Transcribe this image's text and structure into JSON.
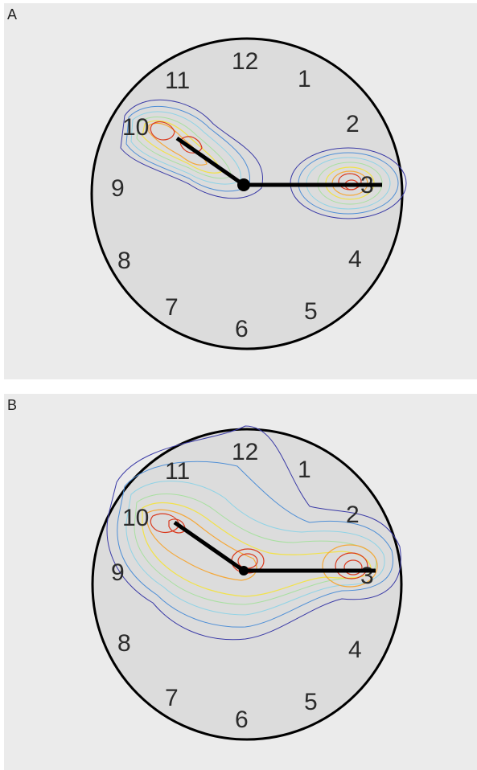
{
  "panels": [
    {
      "label": "A",
      "dial_numbers": [
        "1",
        "2",
        "3",
        "4",
        "5",
        "6",
        "7",
        "8",
        "9",
        "10",
        "11",
        "12"
      ],
      "hands": {
        "hour_pointing_to": 10,
        "minute_pointing_to": 3
      },
      "clusters": [
        "hand-tip-10",
        "hand-mid-10",
        "center",
        "hand-tip-3"
      ]
    },
    {
      "label": "B",
      "dial_numbers": [
        "1",
        "2",
        "3",
        "4",
        "5",
        "6",
        "7",
        "8",
        "9",
        "10",
        "11",
        "12"
      ],
      "hands": {
        "hour_pointing_to": 10,
        "minute_pointing_to": 3
      },
      "clusters": [
        "hand-tip-10",
        "center",
        "hand-tip-3"
      ]
    }
  ],
  "colors": {
    "panel_background": "#ebebeb",
    "dial_face": "#dcdcdc",
    "outline": "#000000",
    "contour_levels": [
      "#3a3aa6",
      "#4f8fd6",
      "#8fd3e6",
      "#a8e0a0",
      "#f2e24a",
      "#f4a83a",
      "#d93a1e"
    ]
  }
}
